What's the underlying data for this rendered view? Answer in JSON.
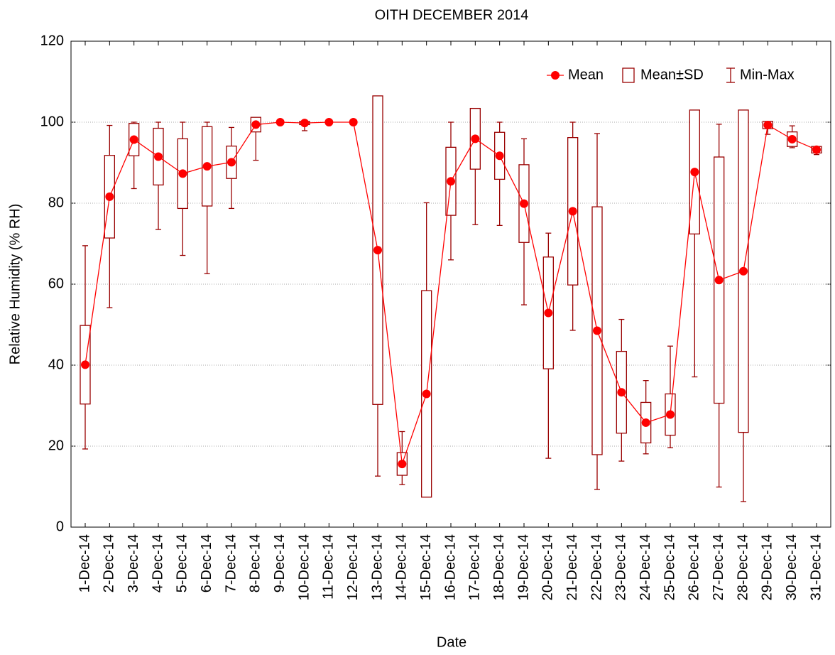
{
  "chart_data": {
    "type": "box",
    "title": "OITH DECEMBER 2014",
    "x_label": "Date",
    "y_label": "Relative Humidity (% RH)",
    "categories": [
      "1-Dec-14",
      "2-Dec-14",
      "3-Dec-14",
      "4-Dec-14",
      "5-Dec-14",
      "6-Dec-14",
      "7-Dec-14",
      "8-Dec-14",
      "9-Dec-14",
      "10-Dec-14",
      "11-Dec-14",
      "12-Dec-14",
      "13-Dec-14",
      "14-Dec-14",
      "15-Dec-14",
      "16-Dec-14",
      "17-Dec-14",
      "18-Dec-14",
      "19-Dec-14",
      "20-Dec-14",
      "21-Dec-14",
      "22-Dec-14",
      "23-Dec-14",
      "24-Dec-14",
      "25-Dec-14",
      "26-Dec-14",
      "27-Dec-14",
      "28-Dec-14",
      "29-Dec-14",
      "30-Dec-14",
      "31-Dec-14"
    ],
    "series": [
      {
        "name": "Mean",
        "color": "#ff0000",
        "values": [
          40.1,
          81.6,
          95.7,
          91.5,
          87.3,
          89.1,
          90.1,
          99.4,
          100,
          99.8,
          100,
          100,
          68.4,
          15.6,
          32.9,
          85.4,
          95.9,
          91.7,
          79.9,
          52.9,
          78,
          48.5,
          33.3,
          25.8,
          27.8,
          87.7,
          61,
          63.2,
          99.3,
          95.8,
          93.2
        ]
      },
      {
        "name": "Mean±SD",
        "color": "#990000",
        "values": [
          9.7,
          10.2,
          4.0,
          7.0,
          8.6,
          9.8,
          4.0,
          1.8,
          0,
          0.4,
          0,
          0,
          38.1,
          2.8,
          25.5,
          8.4,
          7.5,
          5.8,
          9.6,
          13.8,
          18.2,
          30.6,
          10.1,
          5.0,
          5.1,
          15.3,
          30.4,
          39.8,
          0.9,
          1.8,
          0.8
        ]
      },
      {
        "name": "Min-Max",
        "color": "#990000",
        "min": [
          19.3,
          54.2,
          83.6,
          73.5,
          67.1,
          62.6,
          78.7,
          90.6,
          100,
          97.9,
          100,
          100,
          12.6,
          10.5,
          10,
          66,
          74.7,
          74.5,
          54.9,
          17,
          48.6,
          9.3,
          16.3,
          18.1,
          19.6,
          37.1,
          9.9,
          6.3,
          97,
          93.7,
          92
        ],
        "max": [
          69.5,
          99.2,
          100,
          100,
          100,
          100,
          98.7,
          100,
          100,
          100,
          100,
          100,
          100,
          23.6,
          80.1,
          100,
          100,
          100,
          95.9,
          72.6,
          100,
          97.2,
          51.3,
          36.2,
          44.7,
          100,
          99.5,
          100,
          100,
          99.1,
          94
        ]
      }
    ],
    "ylim": [
      0,
      120
    ],
    "yticks": [
      0,
      20,
      40,
      60,
      80,
      100,
      120
    ],
    "grid": true,
    "legend": "upper right"
  }
}
